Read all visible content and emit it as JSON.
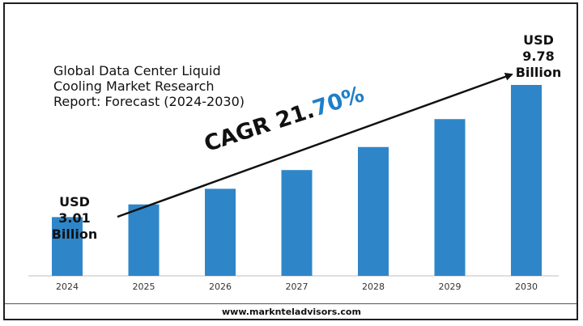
{
  "chart_data": {
    "type": "bar",
    "title": "Global Data Center Liquid Cooling Market Research Report: Forecast (2024-2030)",
    "title_lines": [
      "Global Data Center Liquid",
      "Cooling Market Research",
      "Report: Forecast (2024-2030)"
    ],
    "categories": [
      "2024",
      "2025",
      "2026",
      "2027",
      "2028",
      "2029",
      "2030"
    ],
    "values": [
      3.01,
      3.66,
      4.46,
      5.42,
      6.6,
      8.03,
      9.78
    ],
    "unit": "USD Billion",
    "bar_color": "#2e86c8",
    "grid": false,
    "legend": "none",
    "annotations": {
      "start_label": [
        "USD",
        "3.01",
        "Billion"
      ],
      "end_label": [
        "USD",
        "9.78",
        "Billion"
      ],
      "cagr_text": "CAGR 21.",
      "cagr_pct": "70%",
      "cagr_color": "#1e7fc9"
    }
  },
  "footer": {
    "website": "www.marknteladvisors.com"
  }
}
